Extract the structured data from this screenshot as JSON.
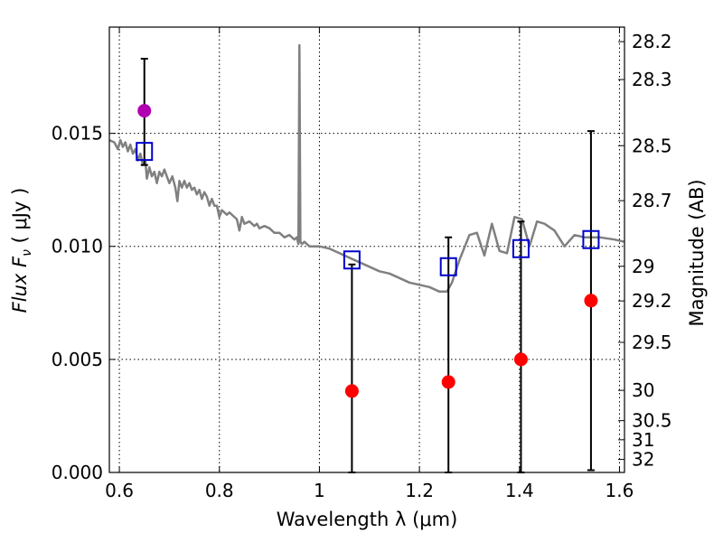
{
  "chart_data": {
    "type": "scatter",
    "xlabel": "Wavelength  λ (μm)",
    "ylabel": "Flux  F",
    "ylabel_sub": "ν",
    "ylabel_unit": "  ( μJy )",
    "y2label": "Magnitude (AB)",
    "xlim": [
      0.58,
      1.61
    ],
    "ylim": [
      0.0,
      0.0197
    ],
    "grid": true,
    "x_ticks": [
      0.6,
      0.8,
      1.0,
      1.2,
      1.4,
      1.6
    ],
    "x_tick_labels": [
      "0.6",
      "0.8",
      "1",
      "1.2",
      "1.4",
      "1.6"
    ],
    "y_ticks": [
      0.0,
      0.005,
      0.01,
      0.015
    ],
    "y_tick_labels": [
      "0.000",
      "0.005",
      "0.010",
      "0.015"
    ],
    "y2_ticks": [
      {
        "mag": 28.2,
        "label": "28.2"
      },
      {
        "mag": 28.3,
        "label": "28.3"
      },
      {
        "mag": 28.5,
        "label": "28.5"
      },
      {
        "mag": 28.7,
        "label": "28.7"
      },
      {
        "mag": 29.0,
        "label": "29"
      },
      {
        "mag": 29.2,
        "label": "29.2"
      },
      {
        "mag": 29.5,
        "label": "29.5"
      },
      {
        "mag": 30.0,
        "label": "30"
      },
      {
        "mag": 30.5,
        "label": "30.5"
      },
      {
        "mag": 31.0,
        "label": "31"
      },
      {
        "mag": 32.0,
        "label": "32"
      }
    ],
    "series": [
      {
        "name": "model spectrum",
        "kind": "line",
        "color": "#808080",
        "points": [
          [
            0.58,
            0.0147
          ],
          [
            0.59,
            0.0146
          ],
          [
            0.597,
            0.0143
          ],
          [
            0.602,
            0.0147
          ],
          [
            0.607,
            0.0144
          ],
          [
            0.612,
            0.0146
          ],
          [
            0.617,
            0.0142
          ],
          [
            0.622,
            0.0145
          ],
          [
            0.627,
            0.0141
          ],
          [
            0.632,
            0.0143
          ],
          [
            0.637,
            0.0138
          ],
          [
            0.642,
            0.0141
          ],
          [
            0.647,
            0.0136
          ],
          [
            0.652,
            0.0138
          ],
          [
            0.655,
            0.013
          ],
          [
            0.66,
            0.0135
          ],
          [
            0.665,
            0.0131
          ],
          [
            0.67,
            0.0133
          ],
          [
            0.675,
            0.0128
          ],
          [
            0.68,
            0.0133
          ],
          [
            0.685,
            0.0131
          ],
          [
            0.69,
            0.0134
          ],
          [
            0.695,
            0.0131
          ],
          [
            0.7,
            0.0128
          ],
          [
            0.706,
            0.0131
          ],
          [
            0.712,
            0.0126
          ],
          [
            0.716,
            0.012
          ],
          [
            0.72,
            0.0129
          ],
          [
            0.725,
            0.0126
          ],
          [
            0.73,
            0.0129
          ],
          [
            0.735,
            0.0126
          ],
          [
            0.74,
            0.0128
          ],
          [
            0.745,
            0.0125
          ],
          [
            0.75,
            0.0126
          ],
          [
            0.755,
            0.0123
          ],
          [
            0.76,
            0.0125
          ],
          [
            0.765,
            0.0121
          ],
          [
            0.77,
            0.0124
          ],
          [
            0.775,
            0.0122
          ],
          [
            0.78,
            0.0118
          ],
          [
            0.785,
            0.0121
          ],
          [
            0.79,
            0.0118
          ],
          [
            0.795,
            0.0118
          ],
          [
            0.8,
            0.0113
          ],
          [
            0.805,
            0.0116
          ],
          [
            0.81,
            0.0115
          ],
          [
            0.815,
            0.0114
          ],
          [
            0.82,
            0.0115
          ],
          [
            0.825,
            0.0114
          ],
          [
            0.83,
            0.0113
          ],
          [
            0.835,
            0.0112
          ],
          [
            0.84,
            0.0107
          ],
          [
            0.845,
            0.0113
          ],
          [
            0.85,
            0.011
          ],
          [
            0.86,
            0.0111
          ],
          [
            0.87,
            0.0109
          ],
          [
            0.875,
            0.011
          ],
          [
            0.88,
            0.0108
          ],
          [
            0.89,
            0.0109
          ],
          [
            0.9,
            0.0108
          ],
          [
            0.91,
            0.0106
          ],
          [
            0.92,
            0.0106
          ],
          [
            0.93,
            0.0104
          ],
          [
            0.94,
            0.0105
          ],
          [
            0.95,
            0.0103
          ],
          [
            0.955,
            0.0104
          ],
          [
            0.958,
            0.0101
          ],
          [
            0.96,
            0.0189
          ],
          [
            0.962,
            0.0102
          ],
          [
            0.965,
            0.0101
          ],
          [
            0.97,
            0.0102
          ],
          [
            0.98,
            0.01
          ],
          [
            1.0,
            0.01
          ],
          [
            1.02,
            0.0099
          ],
          [
            1.04,
            0.0097
          ],
          [
            1.06,
            0.0095
          ],
          [
            1.08,
            0.0093
          ],
          [
            1.1,
            0.0091
          ],
          [
            1.12,
            0.0089
          ],
          [
            1.14,
            0.0088
          ],
          [
            1.16,
            0.0086
          ],
          [
            1.18,
            0.0084
          ],
          [
            1.2,
            0.0083
          ],
          [
            1.22,
            0.0082
          ],
          [
            1.24,
            0.008
          ],
          [
            1.255,
            0.008
          ],
          [
            1.265,
            0.0084
          ],
          [
            1.28,
            0.0094
          ],
          [
            1.3,
            0.0105
          ],
          [
            1.315,
            0.0106
          ],
          [
            1.33,
            0.0096
          ],
          [
            1.345,
            0.011
          ],
          [
            1.36,
            0.0098
          ],
          [
            1.375,
            0.0097
          ],
          [
            1.39,
            0.0113
          ],
          [
            1.405,
            0.0112
          ],
          [
            1.42,
            0.01
          ],
          [
            1.435,
            0.0111
          ],
          [
            1.45,
            0.011
          ],
          [
            1.47,
            0.0107
          ],
          [
            1.49,
            0.01
          ],
          [
            1.51,
            0.0105
          ],
          [
            1.53,
            0.0104
          ],
          [
            1.56,
            0.0104
          ],
          [
            1.59,
            0.0103
          ],
          [
            1.61,
            0.0102
          ]
        ]
      },
      {
        "name": "model fluxes",
        "kind": "open-square",
        "color": "#0000cc",
        "points": [
          [
            0.65,
            0.0142
          ],
          [
            1.065,
            0.0094
          ],
          [
            1.258,
            0.0091
          ],
          [
            1.403,
            0.0099
          ],
          [
            1.543,
            0.0103
          ]
        ]
      },
      {
        "name": "observed fluxes",
        "kind": "filled-circle",
        "color": "#ff0000",
        "points": [
          [
            1.065,
            0.0036
          ],
          [
            1.258,
            0.004
          ],
          [
            1.403,
            0.005
          ],
          [
            1.543,
            0.0076
          ]
        ]
      },
      {
        "name": "optical flux",
        "kind": "filled-circle",
        "color": "#b000b0",
        "points": [
          [
            0.65,
            0.016
          ]
        ]
      }
    ],
    "error_bars": [
      {
        "x": 0.65,
        "low": 0.0136,
        "high": 0.0183
      },
      {
        "x": 1.065,
        "low": 0.0,
        "high": 0.0092
      },
      {
        "x": 1.258,
        "low": 0.0,
        "high": 0.0104
      },
      {
        "x": 1.403,
        "low": 0.0,
        "high": 0.0111
      },
      {
        "x": 1.543,
        "low": 0.0001,
        "high": 0.0151
      }
    ]
  }
}
